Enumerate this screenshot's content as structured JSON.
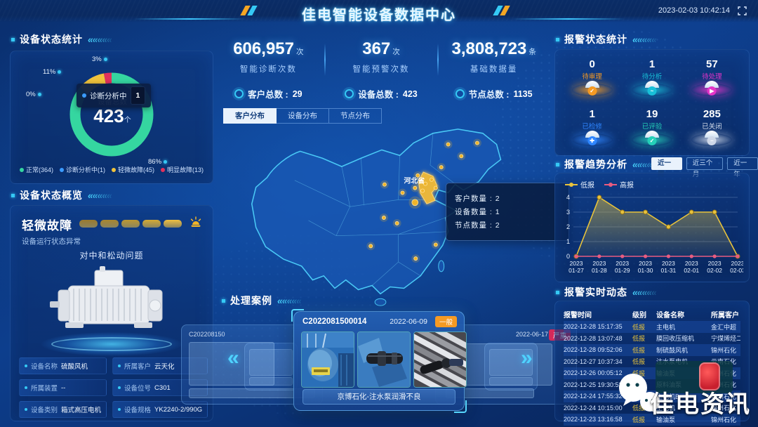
{
  "header": {
    "title": "佳电智能设备数据中心",
    "timestamp": "2023-02-03 10:42:14"
  },
  "device_status": {
    "title": "设备状态统计",
    "donut": {
      "total_label": "设备总数",
      "total_value": "423",
      "total_unit": "个",
      "tooltip": {
        "label": "诊断分析中",
        "value": "1"
      },
      "segments": [
        {
          "name": "正常",
          "count": 364,
          "pct_label": "86%",
          "color": "#35d6a0"
        },
        {
          "name": "诊断分析中",
          "count": 1,
          "pct_label": "0%",
          "color": "#3b9bff"
        },
        {
          "name": "轻微故障",
          "count": 45,
          "pct_label": "11%",
          "color": "#f0c33c"
        },
        {
          "name": "明显故障",
          "count": 13,
          "pct_label": "3%",
          "color": "#e0315c"
        }
      ]
    }
  },
  "device_overview": {
    "title": "设备状态概览",
    "status": "轻微故障",
    "status_desc": "设备运行状态异常",
    "issue": "对中和松动问题",
    "fields": [
      {
        "label": "设备名称",
        "value": "硫酸风机"
      },
      {
        "label": "所属客户",
        "value": "云天化"
      },
      {
        "label": "所属装置",
        "value": "--"
      },
      {
        "label": "设备位号",
        "value": "C301"
      },
      {
        "label": "设备类别",
        "value": "箱式高压电机"
      },
      {
        "label": "设备规格",
        "value": "YK2240-2/990G"
      }
    ]
  },
  "center": {
    "stats": [
      {
        "value": "606,957",
        "unit": "次",
        "label": "智能诊断次数"
      },
      {
        "value": "367",
        "unit": "次",
        "label": "智能预警次数"
      },
      {
        "value": "3,808,723",
        "unit": "条",
        "label": "基础数据量"
      }
    ],
    "totals": [
      {
        "label": "客户总数",
        "value": "29"
      },
      {
        "label": "设备总数",
        "value": "423"
      },
      {
        "label": "节点总数",
        "value": "1135"
      }
    ],
    "tabs": [
      {
        "label": "客户分布",
        "active": true
      },
      {
        "label": "设备分布",
        "active": false
      },
      {
        "label": "节点分布",
        "active": false
      }
    ],
    "map": {
      "province": "河北省",
      "tooltip": [
        {
          "label": "客户数量",
          "value": "2"
        },
        {
          "label": "设备数量",
          "value": "1"
        },
        {
          "label": "节点数量",
          "value": "2"
        }
      ],
      "markers": [
        [
          322,
          30
        ],
        [
          364,
          28
        ],
        [
          341,
          47
        ],
        [
          312,
          63
        ],
        [
          278,
          75
        ],
        [
          298,
          81
        ],
        [
          289,
          87
        ],
        [
          304,
          93
        ],
        [
          274,
          93
        ],
        [
          285,
          97
        ],
        [
          256,
          100
        ],
        [
          230,
          88
        ],
        [
          274,
          114
        ],
        [
          229,
          136
        ],
        [
          248,
          144
        ],
        [
          210,
          177
        ],
        [
          304,
          175
        ],
        [
          275,
          195
        ]
      ]
    },
    "cases": {
      "title": "处理案例",
      "card_id": "C2022081500014",
      "date": "2022-06-09",
      "severity": "一般",
      "caption": "京博石化-注水泵润滑不良",
      "bg_left_id": "C202208150",
      "bg_right_date": "2022-06-17",
      "bg_right_severity": "严重"
    }
  },
  "alarm_status": {
    "title": "报警状态统计",
    "items": [
      {
        "value": "0",
        "label": "待审理",
        "color": "#f59a23",
        "icon": "check-icon"
      },
      {
        "value": "1",
        "label": "待分析",
        "color": "#19c0d8",
        "icon": "pulse-icon"
      },
      {
        "value": "57",
        "label": "待处理",
        "color": "#e435c8",
        "icon": "cursor-icon"
      },
      {
        "value": "1",
        "label": "已检修",
        "color": "#2f86ff",
        "icon": "wrench-icon"
      },
      {
        "value": "19",
        "label": "已评验",
        "color": "#25d0b8",
        "icon": "check-icon"
      },
      {
        "value": "285",
        "label": "已关闭",
        "color": "#cfd8e8",
        "icon": "minus-icon"
      }
    ]
  },
  "alarm_trend": {
    "title": "报警趋势分析",
    "buttons": [
      {
        "label": "近一周",
        "active": true
      },
      {
        "label": "近三个月",
        "active": false
      },
      {
        "label": "近一年",
        "active": false
      }
    ],
    "chart_data": {
      "type": "area",
      "x_year": "2023",
      "x": [
        "01-27",
        "01-28",
        "01-29",
        "01-30",
        "01-31",
        "02-01",
        "02-02",
        "02-03"
      ],
      "series": [
        {
          "name": "低报",
          "values": [
            0,
            4,
            3,
            3,
            2,
            3,
            3,
            0
          ],
          "color": "#e8c33c"
        },
        {
          "name": "高报",
          "values": [
            0,
            0,
            0,
            0,
            0,
            0,
            0,
            0
          ],
          "color": "#e85c80"
        }
      ],
      "ylim": [
        0,
        4
      ],
      "yticks": [
        0,
        1,
        2,
        3,
        4
      ],
      "grid": true,
      "legend_position": "top-left"
    }
  },
  "alarm_feed": {
    "title": "报警实时动态",
    "columns": [
      "报警时间",
      "级别",
      "设备名称",
      "所属客户"
    ],
    "rows": [
      [
        "2022-12-28 15:17:35",
        "低报",
        "主电机",
        "金汇中超"
      ],
      [
        "2022-12-28 13:07:48",
        "低报",
        "膜回收压缩机",
        "宁煤烯烃二分"
      ],
      [
        "2022-12-28 09:52:06",
        "低报",
        "制硫鼓风机",
        "锦州石化"
      ],
      [
        "2022-12-27 10:37:34",
        "低报",
        "注水泵电机",
        "云南石化"
      ],
      [
        "2022-12-26 00:05:12",
        "低报",
        "输油泵",
        "锦州石化"
      ],
      [
        "2022-12-25 19:30:53",
        "低报",
        "原料油泵",
        "锦州石化"
      ],
      [
        "2022-12-24 17:55:32",
        "高报",
        "主电机B",
        "锦州石化"
      ],
      [
        "2022-12-24 10:15:00",
        "低报",
        "主电机",
        "锦州石化"
      ],
      [
        "2022-12-23 13:16:58",
        "低报",
        "输油泵",
        "锦州石化"
      ]
    ]
  },
  "watermark": {
    "text": "佳电资讯"
  }
}
